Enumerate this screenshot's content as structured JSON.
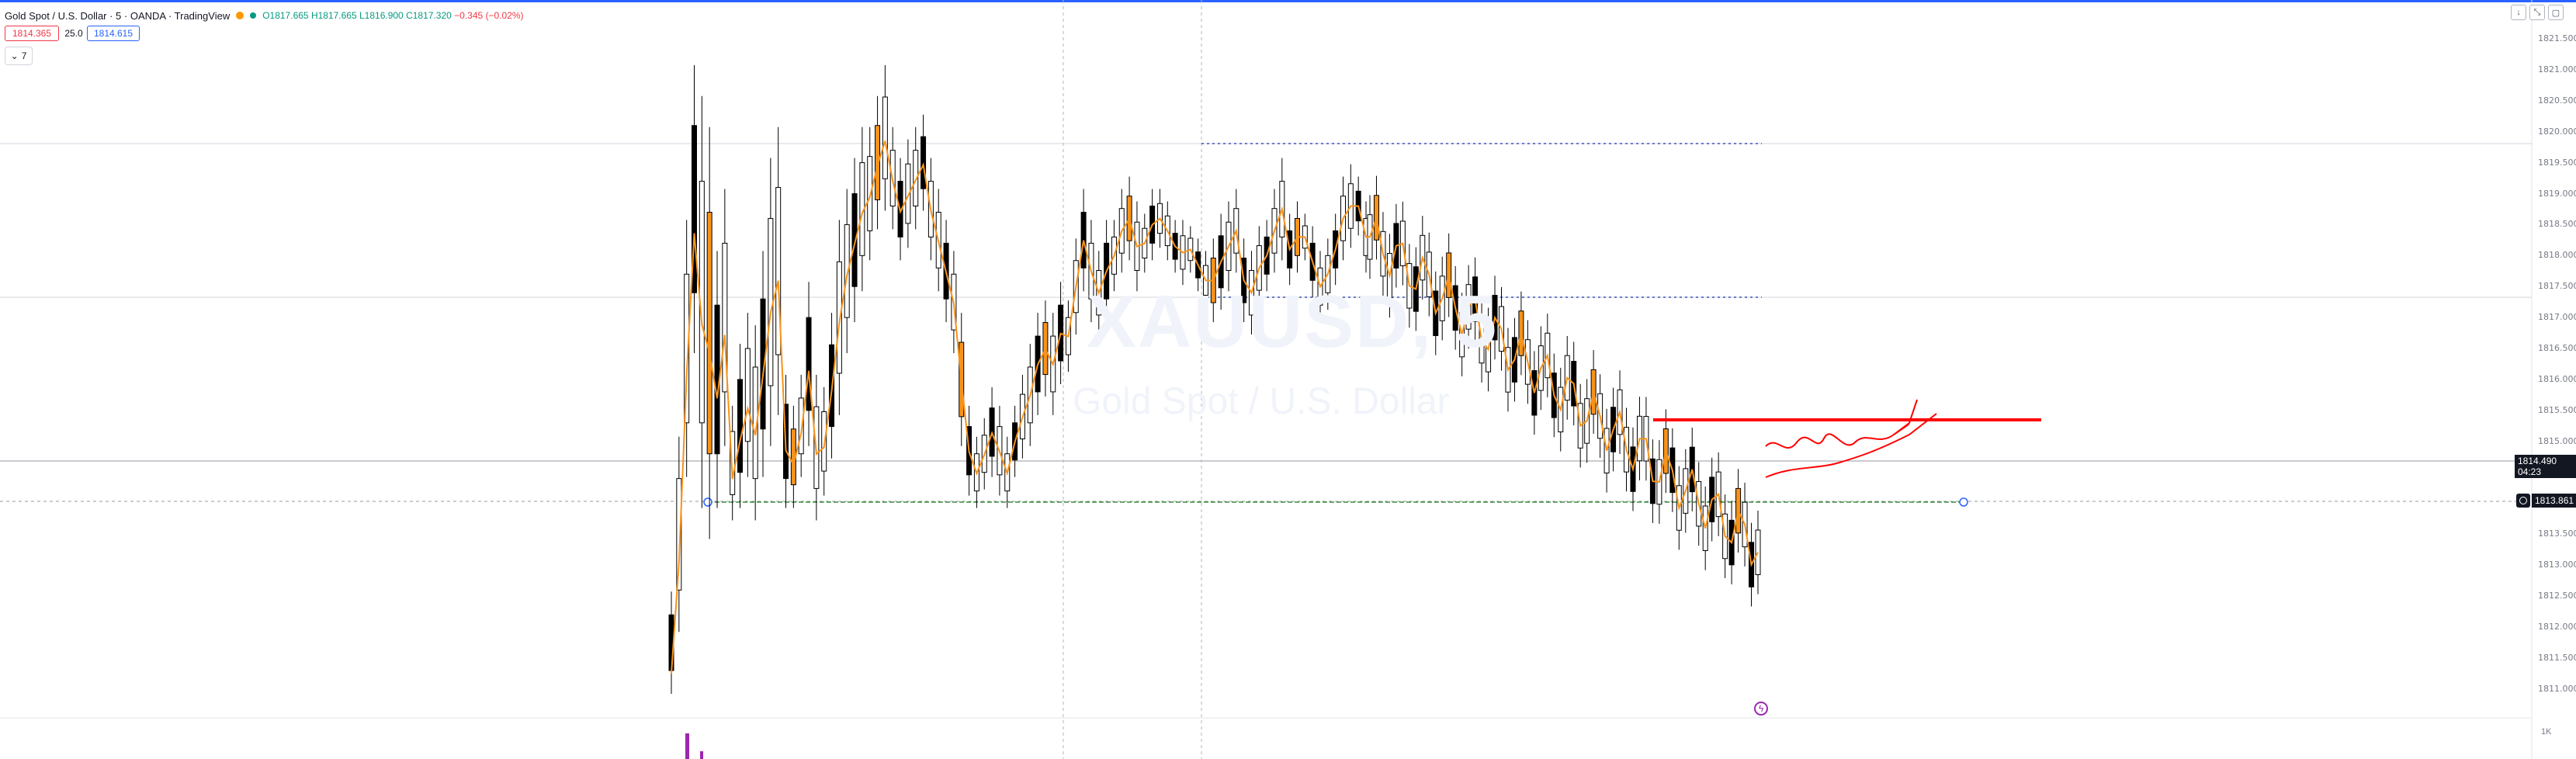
{
  "header": {
    "title": "Gold Spot / U.S. Dollar · 5 · OANDA · TradingView",
    "ohlc_o": "O1817.665",
    "ohlc_h": "H1817.665",
    "ohlc_l": "L1816.900",
    "ohlc_c": "C1817.320",
    "change": "−0.345 (−0.02%)"
  },
  "trade": {
    "sell": "1814.365",
    "spread": "25.0",
    "buy": "1814.615"
  },
  "indicators_toggle": "7",
  "watermark": {
    "symbol": "XAUUSD, 5",
    "description": "Gold Spot / U.S. Dollar"
  },
  "price_axis": {
    "labels": [
      "1821.500",
      "1821.000",
      "1820.500",
      "1820.000",
      "1819.500",
      "1819.000",
      "1818.500",
      "1818.000",
      "1817.500",
      "1817.000",
      "1816.500",
      "1816.000",
      "1815.500",
      "1815.000",
      "1814.500",
      "1814.000",
      "1813.500",
      "1813.000",
      "1812.500",
      "1812.000",
      "1811.500",
      "1811.000"
    ],
    "current_price": "1814.490",
    "countdown": "04:23",
    "line_price": "1813.861",
    "volume_label": "1K"
  },
  "colors": {
    "ma": "#f7931a",
    "candle_up": "#ffffff",
    "candle_down": "#000000",
    "drawing_red": "#ff0000",
    "trend_green": "#388e3c",
    "range_blue": "#3f51b5",
    "volume_purple": "#9c27b0"
  },
  "icons": [
    "minimize-icon",
    "collapse-icon",
    "maximize-icon",
    "alert-lightning-icon",
    "chevron-down-icon"
  ]
}
